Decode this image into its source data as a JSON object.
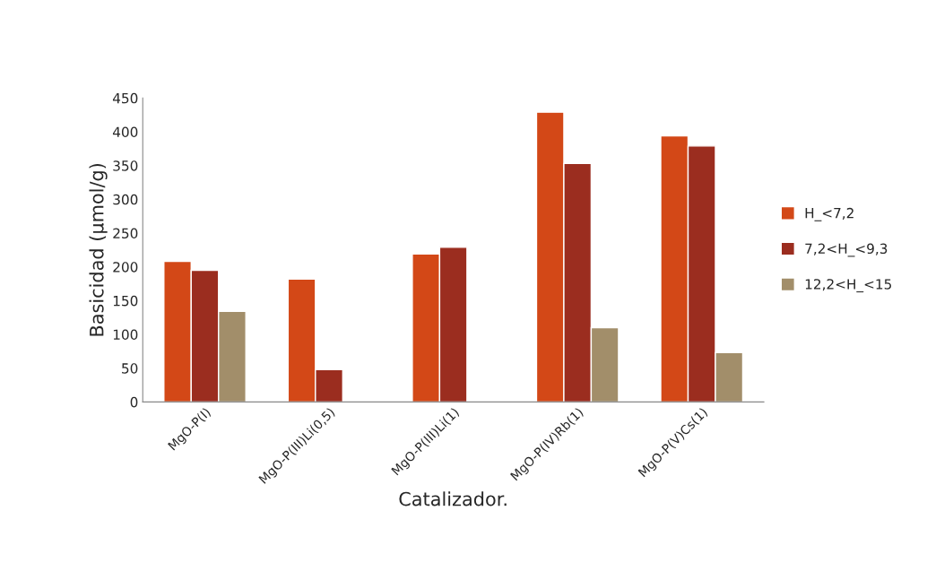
{
  "chart_data": {
    "type": "bar",
    "xlabel": "Catalizador.",
    "ylabel": "Basicidad (µmol/g)",
    "categories": [
      "MgO-P(I)",
      "MgO-P(III)Li(0,5)",
      "MgO-P(III)Li(1)",
      "MgO-P(IV)Rb(1)",
      "MgO-P(V)Cs(1)"
    ],
    "series": [
      {
        "name": "H_<7,2",
        "color": "#d34817",
        "values": [
          208,
          182,
          219,
          429,
          394
        ]
      },
      {
        "name": "7,2<H_<9,3",
        "color": "#9b2d1f",
        "values": [
          195,
          48,
          229,
          353,
          379
        ]
      },
      {
        "name": "12,2<H_<15",
        "color": "#a28e6a",
        "values": [
          134,
          null,
          null,
          110,
          73
        ]
      }
    ],
    "ylim": [
      0,
      450
    ],
    "yticks": [
      0,
      50,
      100,
      150,
      200,
      250,
      300,
      350,
      400,
      450
    ],
    "grid": false,
    "legend": "right"
  }
}
